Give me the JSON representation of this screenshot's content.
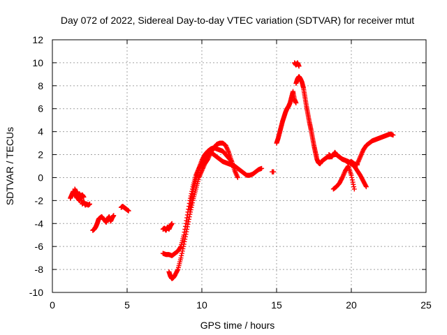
{
  "chart_data": {
    "type": "scatter",
    "title": "Day 072 of 2022, Sidereal Day-to-day VTEC variation (SDTVAR) for receiver mtut",
    "xlabel": "GPS time / hours",
    "ylabel": "SDTVAR / TECUs",
    "xlim": [
      0,
      25
    ],
    "ylim": [
      -10,
      12
    ],
    "xticks": [
      "0",
      "5",
      "10",
      "15",
      "20",
      "25"
    ],
    "yticks": [
      "-10",
      "-8",
      "-6",
      "-4",
      "-2",
      "0",
      "2",
      "4",
      "6",
      "8",
      "10",
      "12"
    ],
    "grid": true,
    "marker": "+",
    "color": "#ff0000",
    "series": [
      {
        "name": "seg1",
        "x": [
          1.2,
          1.3,
          1.4,
          1.5,
          1.6,
          1.7,
          1.8,
          1.9,
          2.0,
          2.1,
          2.2,
          2.3,
          2.4,
          2.5
        ],
        "y": [
          -1.8,
          -1.5,
          -1.2,
          -1.6,
          -1.4,
          -1.8,
          -2.0,
          -1.6,
          -2.3,
          -2.1,
          -2.4,
          -2.3,
          -2.4,
          -2.3
        ]
      },
      {
        "name": "seg1b",
        "x": [
          1.5,
          1.6,
          1.7,
          1.8,
          1.9,
          2.0,
          2.1
        ],
        "y": [
          -1.0,
          -1.3,
          -1.5,
          -1.4,
          -1.6,
          -1.5,
          -1.7
        ]
      },
      {
        "name": "seg2",
        "x": [
          2.7,
          2.8,
          2.9,
          3.0,
          3.1,
          3.2,
          3.3,
          3.4,
          3.5,
          3.6,
          3.7,
          3.8,
          3.9,
          4.0,
          4.1
        ],
        "y": [
          -4.6,
          -4.5,
          -4.3,
          -4.0,
          -3.6,
          -3.5,
          -3.4,
          -3.6,
          -3.7,
          -3.9,
          -3.6,
          -3.4,
          -3.8,
          -3.5,
          -3.3
        ]
      },
      {
        "name": "seg3",
        "x": [
          4.6,
          4.7,
          4.8,
          4.9,
          5.0,
          5.1
        ],
        "y": [
          -2.6,
          -2.5,
          -2.6,
          -2.7,
          -2.8,
          -2.9
        ]
      },
      {
        "name": "seg4",
        "x": [
          7.4,
          7.5,
          7.6,
          7.7,
          7.8,
          7.9,
          8.0
        ],
        "y": [
          -4.5,
          -4.4,
          -4.6,
          -4.3,
          -4.5,
          -4.2,
          -4.0
        ]
      },
      {
        "name": "seg5",
        "x": [
          7.4,
          7.6,
          7.8,
          8.0,
          8.2,
          8.4,
          8.6,
          8.8,
          9.0,
          9.2,
          9.4,
          9.6,
          9.8,
          10.0,
          10.2,
          10.4,
          10.6,
          10.8,
          11.0,
          11.2,
          11.4,
          11.6,
          11.8,
          12.0,
          12.2,
          12.4,
          12.6,
          12.8,
          13.0,
          13.2,
          13.4,
          13.6,
          13.8,
          14.0
        ],
        "y": [
          -6.6,
          -6.7,
          -6.7,
          -6.8,
          -6.6,
          -6.4,
          -6.0,
          -5.0,
          -3.5,
          -2.0,
          -0.8,
          0.2,
          0.8,
          1.2,
          1.6,
          2.0,
          2.2,
          2.0,
          1.8,
          1.6,
          1.4,
          1.3,
          1.2,
          1.1,
          1.0,
          0.8,
          0.6,
          0.4,
          0.2,
          0.2,
          0.3,
          0.5,
          0.7,
          0.8
        ]
      },
      {
        "name": "seg6",
        "x": [
          7.8,
          7.9,
          8.0,
          8.1,
          8.2,
          8.4,
          8.6,
          8.8,
          9.0,
          9.2,
          9.4,
          9.6,
          9.8,
          10.0,
          10.2,
          10.4,
          10.6,
          10.8,
          11.0,
          11.2,
          11.4,
          11.6,
          11.8,
          12.0,
          12.2,
          12.4
        ],
        "y": [
          -8.2,
          -8.6,
          -8.8,
          -8.7,
          -8.5,
          -8.0,
          -7.0,
          -5.8,
          -4.5,
          -3.2,
          -2.0,
          -1.0,
          0.0,
          0.6,
          1.2,
          1.6,
          2.2,
          2.6,
          2.9,
          3.0,
          3.0,
          2.8,
          2.2,
          1.4,
          0.6,
          0.0
        ]
      },
      {
        "name": "seg7",
        "x": [
          9.2,
          9.4,
          9.6,
          9.8,
          10.0,
          10.2,
          10.4,
          10.6,
          10.8,
          11.0,
          11.2,
          11.4,
          11.6,
          11.8,
          12.0
        ],
        "y": [
          -2.8,
          -1.2,
          -0.2,
          0.8,
          1.5,
          2.0,
          2.3,
          2.5,
          2.6,
          2.5,
          2.4,
          2.3,
          2.0,
          1.7,
          1.4
        ]
      },
      {
        "name": "seg8",
        "x": [
          14.7,
          14.8
        ],
        "y": [
          0.5,
          0.5
        ]
      },
      {
        "name": "seg9",
        "x": [
          15.0,
          15.1,
          15.2,
          15.3,
          15.4,
          15.5,
          15.6,
          15.7,
          15.8,
          15.9,
          16.0,
          16.1,
          16.2,
          16.3
        ],
        "y": [
          3.0,
          3.4,
          3.9,
          4.4,
          4.9,
          5.3,
          5.7,
          6.0,
          6.2,
          6.5,
          7.0,
          7.5,
          6.8,
          6.5
        ]
      },
      {
        "name": "seg10",
        "x": [
          16.2,
          16.3,
          16.4,
          16.5
        ],
        "y": [
          10.0,
          9.8,
          10.0,
          9.7
        ]
      },
      {
        "name": "seg11",
        "x": [
          16.3,
          16.4,
          16.5,
          16.6,
          16.7,
          16.8,
          16.9,
          17.0,
          17.1,
          17.2,
          17.3,
          17.4,
          17.5,
          17.6,
          17.7,
          17.8,
          17.9,
          18.0,
          18.2,
          18.4,
          18.6,
          18.8,
          19.0,
          19.2,
          19.4,
          19.6,
          19.8,
          20.0,
          20.2,
          20.4
        ],
        "y": [
          8.2,
          8.6,
          8.8,
          8.6,
          8.3,
          7.8,
          7.0,
          6.2,
          5.5,
          4.8,
          4.2,
          3.5,
          2.8,
          2.2,
          1.6,
          1.3,
          1.2,
          1.4,
          1.6,
          1.8,
          1.8,
          2.0,
          2.0,
          1.8,
          1.6,
          1.5,
          1.3,
          1.4,
          1.2,
          1.1
        ]
      },
      {
        "name": "seg12",
        "x": [
          18.5,
          18.7,
          18.9,
          19.0,
          19.2,
          19.4,
          19.6,
          19.8,
          20.0,
          20.2,
          20.4,
          20.6,
          20.8,
          21.0
        ],
        "y": [
          2.0,
          1.8,
          2.2,
          2.0,
          1.8,
          1.6,
          1.5,
          1.4,
          1.2,
          1.0,
          0.6,
          0.2,
          -0.3,
          -0.8
        ]
      },
      {
        "name": "seg13",
        "x": [
          18.8,
          19.0,
          19.2,
          19.4,
          19.6,
          19.8,
          20.0,
          20.2
        ],
        "y": [
          -1.0,
          -0.8,
          -0.5,
          0.0,
          0.6,
          1.0,
          0.2,
          -1.0
        ]
      },
      {
        "name": "seg14",
        "x": [
          20.4,
          20.6,
          20.8,
          21.0,
          21.2,
          21.4,
          21.6,
          21.8,
          22.0,
          22.2,
          22.4,
          22.6,
          22.8
        ],
        "y": [
          1.2,
          1.8,
          2.4,
          2.8,
          3.0,
          3.2,
          3.3,
          3.4,
          3.5,
          3.6,
          3.7,
          3.8,
          3.7
        ]
      }
    ]
  }
}
